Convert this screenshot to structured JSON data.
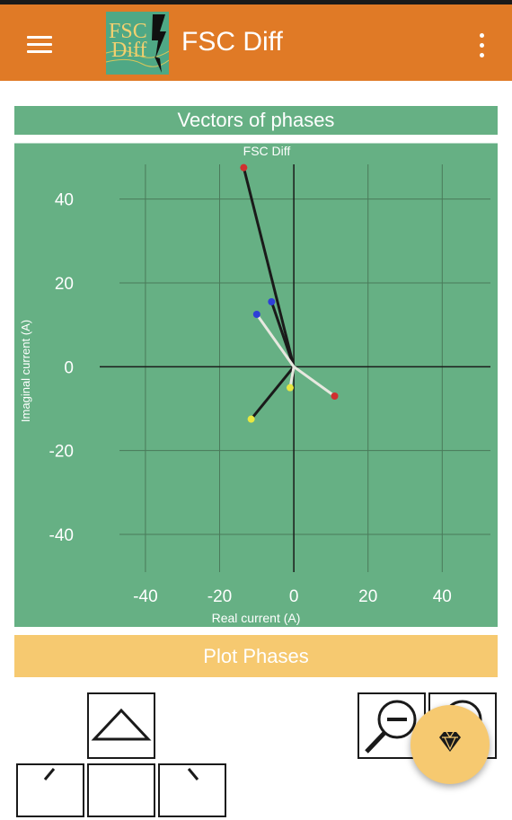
{
  "app": {
    "title": "FSC Diff",
    "logo_text_top": "FSC",
    "logo_text_bottom": "Diff",
    "menu_icon": "hamburger-menu-icon",
    "overflow_icon": "more-vert-icon"
  },
  "section": {
    "title": "Vectors of phases"
  },
  "chart_data": {
    "type": "scatter",
    "title": "FSC Diff",
    "xlabel": "Real current (A)",
    "ylabel": "Imaginal current (A)",
    "xlim": [
      -47,
      53
    ],
    "ylim": [
      -49,
      50
    ],
    "xticks": [
      -40,
      -20,
      0,
      20,
      40
    ],
    "yticks": [
      -40,
      -20,
      0,
      20,
      40
    ],
    "grid": true,
    "background": "#66b084",
    "vectors": [
      {
        "color": "#1a1a1a",
        "marker": "#d03030",
        "x": -13.5,
        "y": 47.5
      },
      {
        "color": "#1a1a1a",
        "marker": "#2e3fd8",
        "x": -6,
        "y": 15.5
      },
      {
        "color": "#1a1a1a",
        "marker": "#e8e840",
        "x": -11.5,
        "y": -12.5
      },
      {
        "color": "#e8e8e0",
        "marker": "#2e3fd8",
        "x": -10,
        "y": 12.5
      },
      {
        "color": "#e8e8e0",
        "marker": "#d03030",
        "x": 11,
        "y": -7
      },
      {
        "color": "#e8e8e0",
        "marker": "#e8e840",
        "x": -1,
        "y": -5
      }
    ]
  },
  "plot_button": {
    "label": "Plot Phases"
  },
  "controls": {
    "up_icon": "triangle-up-icon",
    "left_icon": "arrow-left-icon",
    "center_icon": "center-icon",
    "right_icon": "arrow-right-icon",
    "zoom_out_icon": "zoom-out-icon",
    "zoom_in_icon": "zoom-in-icon"
  },
  "fab": {
    "icon": "diamond-icon"
  },
  "colors": {
    "appbar": "#e07a26",
    "chart": "#66b084",
    "button": "#f6c970"
  }
}
